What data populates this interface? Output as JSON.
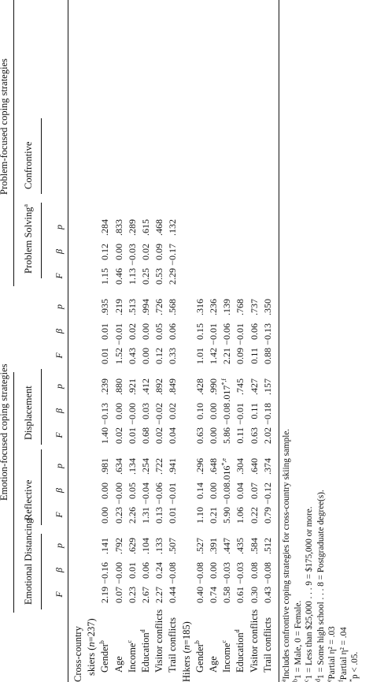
{
  "table": {
    "groups": [
      {
        "label": "Emotion-focused coping strategies"
      },
      {
        "label": "Problem-focused coping strategies"
      }
    ],
    "subgroups": [
      {
        "label": "Emotional Distancing"
      },
      {
        "label": "Reflective"
      },
      {
        "label": "Displacement"
      },
      {
        "label": "Problem Solving",
        "sup": "a"
      },
      {
        "label": "Confrontive"
      }
    ],
    "stats": [
      "F",
      "β",
      "p"
    ],
    "sections": [
      {
        "title_line1": "Cross-country",
        "title_line2_pre": "skiers (",
        "title_n": "n",
        "title_line2_post": "=237)",
        "rows": [
          {
            "label": "Gender",
            "sup": "b",
            "cells": [
              "2.19",
              "−0.16",
              ".141",
              "0.00",
              "0.00",
              ".981",
              "1.40",
              "−0.13",
              ".239",
              "0.01",
              "0.01",
              ".935",
              "1.15",
              "0.12",
              ".284"
            ]
          },
          {
            "label": "Age",
            "sup": "",
            "cells": [
              "0.07",
              "−0.00",
              ".792",
              "0.23",
              "−0.00",
              ".634",
              "0.02",
              "0.00",
              ".880",
              "1.52",
              "−0.01",
              ".219",
              "0.46",
              "0.00",
              ".833"
            ]
          },
          {
            "label": "Income",
            "sup": "c",
            "cells": [
              "0.23",
              "0.01",
              ".629",
              "2.26",
              "0.05",
              ".134",
              "0.01",
              "−0.00",
              ".921",
              "0.43",
              "0.02",
              ".513",
              "1.13",
              "−0.03",
              ".289"
            ]
          },
          {
            "label": "Education",
            "sup": "d",
            "cells": [
              "2.67",
              "0.06",
              ".104",
              "1.31",
              "−0.04",
              ".254",
              "0.68",
              "0.03",
              ".412",
              "0.00",
              "0.00",
              ".994",
              "0.25",
              "0.02",
              ".615"
            ]
          },
          {
            "label": "Visitor conflicts",
            "sup": "",
            "cells": [
              "2.27",
              "0.24",
              ".133",
              "0.13",
              "−0.06",
              ".722",
              "0.02",
              "−0.02",
              ".892",
              "0.12",
              "0.05",
              ".726",
              "0.53",
              "0.09",
              ".468"
            ]
          },
          {
            "label": "Trail conflicts",
            "sup": "",
            "cells": [
              "0.44",
              "−0.08",
              ".507",
              "0.01",
              "−0.01",
              ".941",
              "0.04",
              "0.02",
              ".849",
              "0.33",
              "0.06",
              ".568",
              "2.29",
              "−0.17",
              ".132"
            ]
          }
        ]
      },
      {
        "title_line1": "",
        "title_line2_pre": "Hikers (",
        "title_n": "n",
        "title_line2_post": "=185)",
        "rows": [
          {
            "label": "Gender",
            "sup": "b",
            "cells": [
              "0.40",
              "−0.08",
              ".527",
              "1.10",
              "0.14",
              ".296",
              "0.63",
              "0.10",
              ".428",
              "1.01",
              "0.15",
              ".316",
              "",
              "",
              ""
            ]
          },
          {
            "label": "Age",
            "sup": "",
            "cells": [
              "0.74",
              "0.00",
              ".391",
              "0.21",
              "0.00",
              ".648",
              "0.00",
              "0.00",
              ".990",
              "1.42",
              "−0.01",
              ".236",
              "",
              "",
              ""
            ]
          },
          {
            "label": "Income",
            "sup": "c",
            "cells": [
              "0.58",
              "−0.03",
              ".447",
              "5.90",
              "−0.08",
              ".016*e",
              "5.86",
              "−0.08",
              ".017*f",
              "2.21",
              "−0.06",
              ".139",
              "",
              "",
              ""
            ]
          },
          {
            "label": "Education",
            "sup": "d",
            "cells": [
              "0.61",
              "−0.03",
              ".435",
              "1.06",
              "0.04",
              ".304",
              "0.11",
              "−0.01",
              ".745",
              "0.09",
              "−0.01",
              ".768",
              "",
              "",
              ""
            ]
          },
          {
            "label": "Visitor conflicts",
            "sup": "",
            "cells": [
              "0.30",
              "0.08",
              ".584",
              "0.22",
              "0.07",
              ".640",
              "0.63",
              "0.11",
              ".427",
              "0.11",
              "0.06",
              ".737",
              "",
              "",
              ""
            ]
          },
          {
            "label": "Trail conflicts",
            "sup": "",
            "cells": [
              "0.43",
              "−0.08",
              ".512",
              "0.79",
              "−0.12",
              ".374",
              "2.02",
              "−0.18",
              ".157",
              "0.88",
              "−0.13",
              ".350",
              "",
              "",
              ""
            ]
          }
        ]
      }
    ],
    "footnotes": [
      {
        "mark": "a",
        "text": "Includes confrontive coping strategies for cross-country skiing sample."
      },
      {
        "mark": "b",
        "text": "1 = Male, 0 = Female."
      },
      {
        "mark": "c",
        "text": "1 = Less than $25,000 . . . 9 = $175,000 or more."
      },
      {
        "mark": "d",
        "text": "1 = Some high school . . . 8 = Postgraduate degree(s)."
      },
      {
        "mark": "e",
        "text": "Partial η² = .03"
      },
      {
        "mark": "f",
        "text": "Partial η² = .04"
      },
      {
        "mark": "*",
        "text": "p < .05."
      }
    ]
  }
}
